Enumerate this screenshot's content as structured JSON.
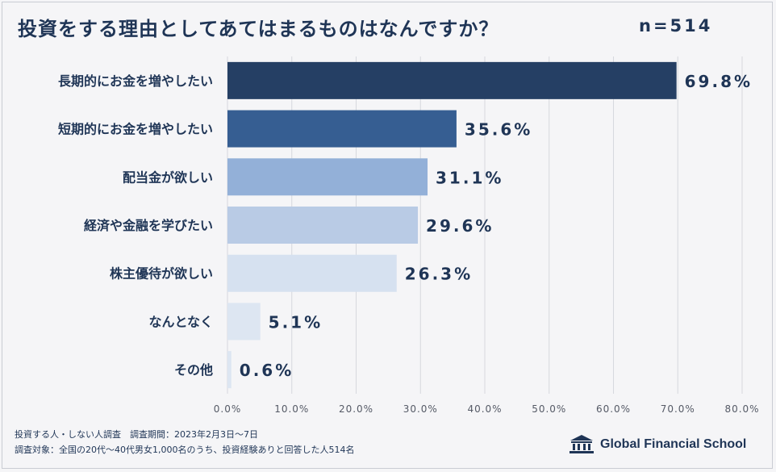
{
  "header": {
    "title": "投資をする理由としてあてはまるものはなんですか？",
    "sample": "n=514"
  },
  "chart_data": {
    "type": "bar",
    "orientation": "horizontal",
    "categories": [
      "長期的にお金を増やしたい",
      "短期的にお金を増やしたい",
      "配当金が欲しい",
      "経済や金融を学びたい",
      "株主優待が欲しい",
      "なんとなく",
      "その他"
    ],
    "values": [
      69.8,
      35.6,
      31.1,
      29.6,
      26.3,
      5.1,
      0.6
    ],
    "value_labels": [
      "69.8%",
      "35.6%",
      "31.1%",
      "29.6%",
      "26.3%",
      "5.1%",
      "0.6%"
    ],
    "bar_colors": [
      "#253f64",
      "#365e92",
      "#93b0d8",
      "#b9cbe5",
      "#d6e1f0",
      "#dde6f2",
      "#dde6f2"
    ],
    "xlim": [
      0,
      80
    ],
    "ticks": [
      "0.0%",
      "10.0%",
      "20.0%",
      "30.0%",
      "40.0%",
      "50.0%",
      "60.0%",
      "70.0%",
      "80.0%"
    ],
    "grid": true
  },
  "footer": {
    "line1": "投資する人・しない人調査　調査期間：2023年2月3日〜7日",
    "line2": "調査対象：全国の20代〜40代男女1,000名のうち、投資経験ありと回答した人514名",
    "brand": "Global Financial School"
  }
}
